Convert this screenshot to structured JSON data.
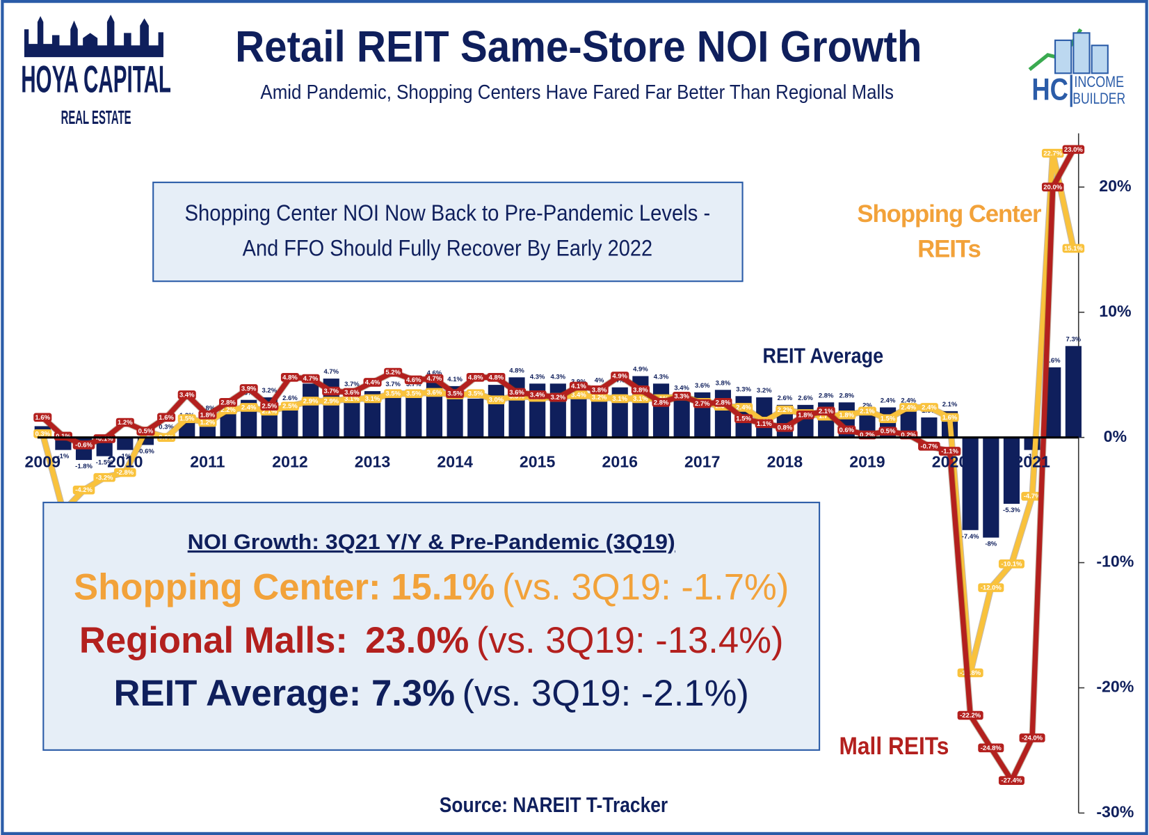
{
  "logo": {
    "name": "HOYA CAPITAL",
    "sub": "REAL ESTATE",
    "right_mark": "HC",
    "right_line1": "INCOME",
    "right_line2": "BUILDER"
  },
  "chart_data": {
    "type": "bar_line",
    "title": "Retail REIT Same-Store NOI Growth",
    "subtitle": "Amid Pandemic, Shopping Centers Have Fared Far Better Than Regional Malls",
    "annotation": [
      "Shopping Center NOI Now Back to Pre-Pandemic Levels -",
      "And FFO Should Fully Recover By Early 2022"
    ],
    "source": "Source: NAREIT T-Tracker",
    "categories": [
      "2009",
      null,
      null,
      null,
      "2010",
      null,
      null,
      null,
      "2011",
      null,
      null,
      null,
      "2012",
      null,
      null,
      null,
      "2013",
      null,
      null,
      null,
      "2014",
      null,
      null,
      null,
      "2015",
      null,
      null,
      null,
      "2016",
      null,
      null,
      null,
      "2017",
      null,
      null,
      null,
      "2018",
      null,
      null,
      null,
      "2019",
      null,
      null,
      null,
      "2020",
      null,
      null,
      null,
      "2021",
      null,
      null
    ],
    "ylim": [
      -30,
      24
    ],
    "yticks": [
      {
        "value": 20,
        "label": "20%"
      },
      {
        "value": 10,
        "label": "10%"
      },
      {
        "value": 0,
        "label": "0%"
      },
      {
        "value": -10,
        "label": "-10%"
      },
      {
        "value": -20,
        "label": "-20%"
      },
      {
        "value": -30,
        "label": "-30%"
      }
    ],
    "series": [
      {
        "name": "REIT Average",
        "kind": "bar",
        "color": "#0f1f5c",
        "values": [
          0.9,
          -1.0,
          -1.8,
          -1.5,
          -1.0,
          -0.6,
          0.3,
          1.2,
          1.8,
          2.1,
          3.0,
          3.2,
          2.6,
          4.3,
          4.7,
          3.7,
          3.7,
          3.7,
          3.7,
          4.6,
          4.1,
          3.1,
          4.2,
          4.8,
          4.3,
          4.3,
          3.9,
          4.0,
          4.0,
          4.9,
          4.3,
          3.4,
          3.6,
          3.8,
          3.3,
          3.2,
          2.6,
          2.6,
          2.8,
          2.8,
          2.0,
          2.4,
          2.4,
          1.6,
          2.1,
          -7.4,
          -8.0,
          -5.3,
          -1.0,
          5.6,
          7.3
        ],
        "value_labels": [
          "0.9%",
          "-1%",
          "-1.8%",
          "-1.5%",
          "-1%",
          "-0.6%",
          "0.3%",
          "1.2%",
          "1.8%",
          "2.1%",
          "3%",
          "3.2%",
          "2.6%",
          "4.3%",
          "4.7%",
          "3.7%",
          "3.7%",
          "3.7%",
          "3.7%",
          "4.6%",
          "4.1%",
          "3.1%",
          "4.2%",
          "4.8%",
          "4.3%",
          "4.3%",
          "3.9%",
          "4%",
          "4%",
          "4.9%",
          "4.3%",
          "3.4%",
          "3.6%",
          "3.8%",
          "3.3%",
          "3.2%",
          "2.6%",
          "2.6%",
          "2.8%",
          "2.8%",
          "2%",
          "2.4%",
          "2.4%",
          "1.6%",
          "2.1%",
          "-7.4%",
          "-8%",
          "-5.3%",
          "-1%",
          "5.6%",
          "7.3%"
        ]
      },
      {
        "name": "Shopping Center REITs",
        "kind": "line",
        "color": "#f9c23c",
        "values": [
          0.3,
          -5.9,
          -4.2,
          -3.2,
          -2.8,
          0.5,
          0.0,
          1.5,
          1.2,
          2.2,
          2.4,
          2.1,
          2.5,
          2.9,
          2.9,
          3.1,
          3.1,
          3.5,
          3.5,
          3.6,
          3.4,
          3.5,
          3.0,
          3.3,
          3.2,
          3.2,
          3.4,
          3.2,
          3.1,
          3.1,
          3.1,
          3.3,
          2.8,
          2.5,
          2.4,
          1.3,
          2.2,
          1.9,
          1.7,
          1.8,
          2.1,
          1.5,
          2.4,
          2.4,
          1.6,
          -18.8,
          -12.0,
          -10.1,
          -4.7,
          22.7,
          15.1
        ],
        "value_labels": [
          "0.3%",
          "-5.9%",
          "-4.2%",
          "-3.2%",
          "-2.8%",
          "0.5%",
          "0.0%",
          "1.5%",
          "1.2%",
          "2.2%",
          "2.4%",
          "2.1%",
          "2.5%",
          "2.9%",
          "2.9%",
          "3.1%",
          "3.1%",
          "3.5%",
          "3.5%",
          "3.6%",
          "3.4%",
          "3.5%",
          "3.0%",
          "3.3%",
          "3.2%",
          "3.2%",
          "3.4%",
          "3.2%",
          "3.1%",
          "3.1%",
          "3.1%",
          "3.3%",
          "2.8%",
          "2.5%",
          "2.4%",
          "1.3%",
          "2.2%",
          "1.9%",
          "1.7%",
          "1.8%",
          "2.1%",
          "1.5%",
          "2.4%",
          "2.4%",
          "1.6%",
          "-18.8%",
          "-12.0%",
          "-10.1%",
          "-4.7%",
          "22.7%",
          "15.1%"
        ]
      },
      {
        "name": "Mall REITs",
        "kind": "line",
        "color": "#b3201e",
        "values": [
          1.6,
          0.1,
          -0.6,
          -0.1,
          1.2,
          0.5,
          1.6,
          3.4,
          1.8,
          2.8,
          3.9,
          2.5,
          4.8,
          4.7,
          3.7,
          3.6,
          4.4,
          5.2,
          4.6,
          4.7,
          3.5,
          4.8,
          4.8,
          3.6,
          3.4,
          3.2,
          4.1,
          3.8,
          4.9,
          3.8,
          2.8,
          3.3,
          2.7,
          2.8,
          1.5,
          1.1,
          0.8,
          1.8,
          2.1,
          0.6,
          0.2,
          0.5,
          0.2,
          -0.7,
          -1.1,
          -22.2,
          -24.8,
          -27.4,
          -24.0,
          20.0,
          23.0
        ],
        "value_labels": [
          "1.6%",
          "0.1%",
          "-0.6%",
          "-0.1%",
          "1.2%",
          "0.5%",
          "1.6%",
          "3.4%",
          "1.8%",
          "2.8%",
          "3.9%",
          "2.5%",
          "4.8%",
          "4.7%",
          "3.7%",
          "3.6%",
          "4.4%",
          "5.2%",
          "4.6%",
          "4.7%",
          "3.5%",
          "4.8%",
          "4.8%",
          "3.6%",
          "3.4%",
          "3.2%",
          "4.1%",
          "3.8%",
          "4.9%",
          "3.8%",
          "2.8%",
          "3.3%",
          "2.7%",
          "2.8%",
          "1.5%",
          "1.1%",
          "0.8%",
          "1.8%",
          "2.1%",
          "0.6%",
          "0.2%",
          "0.5%",
          "0.2%",
          "-0.7%",
          "-1.1%",
          "-22.2%",
          "-24.8%",
          "-27.4%",
          "-24.0%",
          "20.0%",
          "23.0%"
        ]
      }
    ]
  },
  "summary": {
    "heading": "NOI Growth: 3Q21 Y/Y & Pre-Pandemic (3Q19)",
    "lines": [
      {
        "label": "Shopping Center:",
        "value": "15.1%",
        "compare": "(vs. 3Q19: -1.7%)"
      },
      {
        "label": "Regional Malls:",
        "value": "23.0%",
        "compare": "(vs. 3Q19: -13.4%)"
      },
      {
        "label": "REIT Average:",
        "value": "7.3%",
        "compare": "(vs. 3Q19: -2.1%)"
      }
    ]
  }
}
